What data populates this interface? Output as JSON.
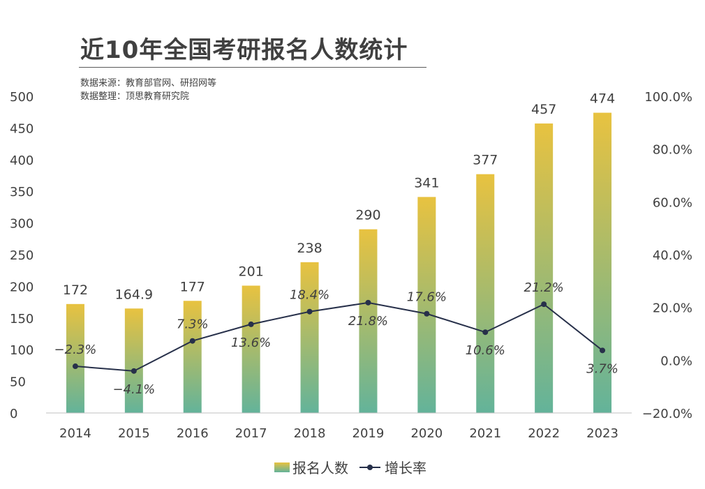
{
  "title": "近10年全国考研报名人数统计",
  "notes": [
    "数据来源：教育部官网、研招网等",
    "数据整理：顶思教育研究院"
  ],
  "chart_data": {
    "type": "bar",
    "categories": [
      "2014",
      "2015",
      "2016",
      "2017",
      "2018",
      "2019",
      "2020",
      "2021",
      "2022",
      "2023"
    ],
    "series": [
      {
        "name": "报名人数",
        "type": "bar",
        "axis": "left",
        "values": [
          172,
          164.9,
          177,
          201,
          238,
          290,
          341,
          377,
          457,
          474
        ],
        "labels": [
          "172",
          "164.9",
          "177",
          "201",
          "238",
          "290",
          "341",
          "377",
          "457",
          "474"
        ]
      },
      {
        "name": "增长率",
        "type": "line",
        "axis": "right",
        "values": [
          -2.3,
          -4.1,
          7.3,
          13.6,
          18.4,
          21.8,
          17.6,
          10.6,
          21.2,
          3.7
        ],
        "labels": [
          "−2.3%",
          "−4.1%",
          "7.3%",
          "13.6%",
          "18.4%",
          "21.8%",
          "17.6%",
          "10.6%",
          "21.2%",
          "3.7%"
        ]
      }
    ],
    "left_axis": {
      "ylim": [
        0,
        500
      ],
      "ticks": [
        "0",
        "50",
        "100",
        "150",
        "200",
        "250",
        "300",
        "350",
        "400",
        "450",
        "500"
      ]
    },
    "right_axis": {
      "ylim": [
        -20,
        100
      ],
      "ticks": [
        "−20.0%",
        "0.0%",
        "20.0%",
        "40.0%",
        "60.0%",
        "80.0%",
        "100.0%"
      ]
    },
    "grid": false,
    "legend": "bottom-center",
    "colors": {
      "bar_top": "#e8c240",
      "bar_bottom": "#63b39a",
      "line": "#27304a",
      "axis": "#bfbfbf"
    }
  }
}
